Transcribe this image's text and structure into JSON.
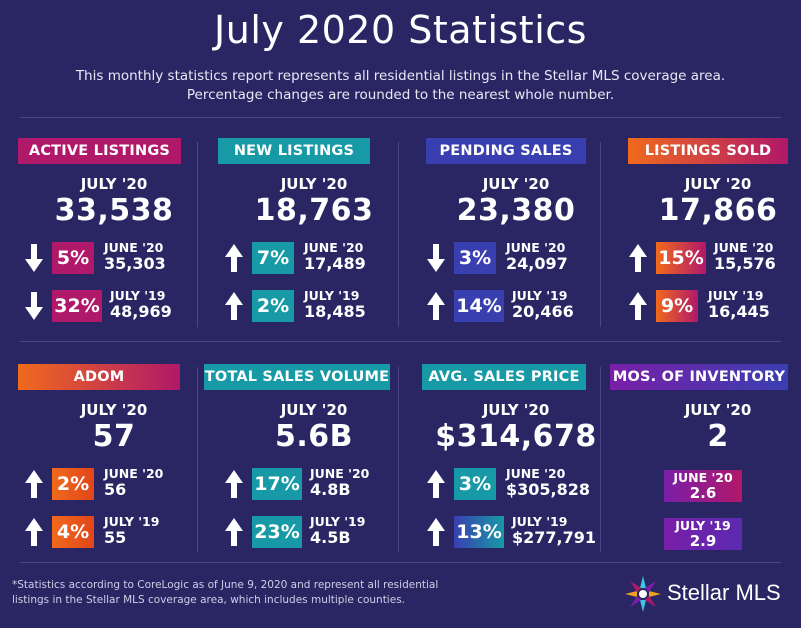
{
  "title": "July 2020 Statistics",
  "subtitle_line1": "This monthly statistics report represents all residential listings in the Stellar MLS coverage area.",
  "subtitle_line2": "Percentage changes are rounded to the nearest whole number.",
  "colors": {
    "background": "#2a2664",
    "magenta": "#b0186a",
    "teal": "#1799a6",
    "blue": "#3a3fb0",
    "orange": "#f06a1c",
    "purple": "#7a1fa8"
  },
  "cards": [
    {
      "label": "ACTIVE LISTINGS",
      "period": "JULY '20",
      "value": "33,538",
      "rows": [
        {
          "direction": "down",
          "pct": "5%",
          "cmp_label": "JUNE '20",
          "cmp_value": "35,303"
        },
        {
          "direction": "down",
          "pct": "32%",
          "cmp_label": "JULY '19",
          "cmp_value": "48,969"
        }
      ]
    },
    {
      "label": "NEW LISTINGS",
      "period": "JULY '20",
      "value": "18,763",
      "rows": [
        {
          "direction": "up",
          "pct": "7%",
          "cmp_label": "JUNE '20",
          "cmp_value": "17,489"
        },
        {
          "direction": "up",
          "pct": "2%",
          "cmp_label": "JULY '19",
          "cmp_value": "18,485"
        }
      ]
    },
    {
      "label": "PENDING SALES",
      "period": "JULY '20",
      "value": "23,380",
      "rows": [
        {
          "direction": "down",
          "pct": "3%",
          "cmp_label": "JUNE '20",
          "cmp_value": "24,097"
        },
        {
          "direction": "up",
          "pct": "14%",
          "cmp_label": "JULY '19",
          "cmp_value": "20,466"
        }
      ]
    },
    {
      "label": "LISTINGS SOLD",
      "period": "JULY '20",
      "value": "17,866",
      "rows": [
        {
          "direction": "up",
          "pct": "15%",
          "cmp_label": "JUNE '20",
          "cmp_value": "15,576"
        },
        {
          "direction": "up",
          "pct": "9%",
          "cmp_label": "JULY '19",
          "cmp_value": "16,445"
        }
      ]
    },
    {
      "label": "ADOM",
      "period": "JULY '20",
      "value": "57",
      "rows": [
        {
          "direction": "up",
          "pct": "2%",
          "cmp_label": "JUNE '20",
          "cmp_value": "56"
        },
        {
          "direction": "up",
          "pct": "4%",
          "cmp_label": "JULY '19",
          "cmp_value": "55"
        }
      ]
    },
    {
      "label": "TOTAL SALES VOLUME",
      "period": "JULY '20",
      "value": "5.6B",
      "rows": [
        {
          "direction": "up",
          "pct": "17%",
          "cmp_label": "JUNE '20",
          "cmp_value": "4.8B"
        },
        {
          "direction": "up",
          "pct": "23%",
          "cmp_label": "JULY '19",
          "cmp_value": "4.5B"
        }
      ]
    },
    {
      "label": "AVG. SALES PRICE",
      "period": "JULY '20",
      "value": "$314,678",
      "rows": [
        {
          "direction": "up",
          "pct": "3%",
          "cmp_label": "JUNE '20",
          "cmp_value": "$305,828"
        },
        {
          "direction": "up",
          "pct": "13%",
          "cmp_label": "JULY '19",
          "cmp_value": "$277,791"
        }
      ]
    },
    {
      "label": "MOS. OF INVENTORY",
      "period": "JULY '20",
      "value": "2",
      "rows": [
        {
          "cmp_label": "JUNE '20",
          "cmp_value": "2.6"
        },
        {
          "cmp_label": "JULY '19",
          "cmp_value": "2.9"
        }
      ]
    }
  ],
  "footnote_line1": "*Statistics according to CoreLogic as of June 9, 2020 and represent all residential",
  "footnote_line2": "listings in the Stellar MLS coverage area, which includes multiple counties.",
  "logo_text": "Stellar MLS"
}
